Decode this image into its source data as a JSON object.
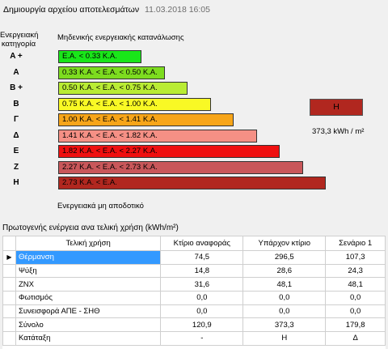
{
  "header": {
    "title": "Δημιουργία αρχείου αποτελεσμάτων",
    "timestamp": "11.03.2018 16:05"
  },
  "rating": {
    "category_label_line1": "Ενεργειακή",
    "category_label_line2": "κατηγορία",
    "top_label": "Μηδενικής ενεργειακής κατανάλωσης",
    "bottom_label": "Ενεργειακά μη αποδοτικό",
    "classes": [
      {
        "letter": "A +",
        "range": "E.A. < 0.33 K.A.",
        "color": "#19e619"
      },
      {
        "letter": "A",
        "range": "0.33 K.A. <  E.A. < 0.50 K.A.",
        "color": "#7ddc1f"
      },
      {
        "letter": "B +",
        "range": "0.50 K.A. <  E.A. < 0.75 K.A.",
        "color": "#b9ec34"
      },
      {
        "letter": "B",
        "range": "0.75 K.A. <  E.A. < 1.00 K.A.",
        "color": "#f9f925"
      },
      {
        "letter": "Γ",
        "range": "1.00 K.A. <  E.A. < 1.41 K.A.",
        "color": "#f7a519"
      },
      {
        "letter": "Δ",
        "range": "1.41 K.A. <  E.A. < 1.82 K.A.",
        "color": "#f59085"
      },
      {
        "letter": "E",
        "range": "1.82 K.A. <  E.A. < 2.27 K.A.",
        "color": "#ef1010"
      },
      {
        "letter": "Z",
        "range": "2.27 K.A. <  E.A. < 2.73 K.A.",
        "color": "#c9575a"
      },
      {
        "letter": "H",
        "range": "2.73 K.A. <  E.A.",
        "color": "#b1271f"
      }
    ],
    "result_class": "H",
    "result_value": "373,3 kWh / m²"
  },
  "table": {
    "title": "Πρωτογενής ενέργεια ανα τελική χρήση (kWh/m²)",
    "row_indicator": "▶",
    "columns": [
      "Τελική χρήση",
      "Κτίριο αναφοράς",
      "Υπάρχον κτίριο",
      "Σενάριο 1"
    ],
    "rows": [
      {
        "name": "Θέρμανση",
        "ref": "74,5",
        "existing": "296,5",
        "scenario": "107,3"
      },
      {
        "name": "Ψύξη",
        "ref": "14,8",
        "existing": "28,6",
        "scenario": "24,3"
      },
      {
        "name": "ZNX",
        "ref": "31,6",
        "existing": "48,1",
        "scenario": "48,1"
      },
      {
        "name": "Φωτισμός",
        "ref": "0,0",
        "existing": "0,0",
        "scenario": "0,0"
      },
      {
        "name": "Συνεισφορά ΑΠΕ - ΣΗΘ",
        "ref": "0,0",
        "existing": "0,0",
        "scenario": "0,0"
      },
      {
        "name": "Σύνολο",
        "ref": "120,9",
        "existing": "373,3",
        "scenario": "179,8"
      },
      {
        "name": "Κατάταξη",
        "ref": "-",
        "existing": "H",
        "scenario": "Δ"
      }
    ]
  }
}
